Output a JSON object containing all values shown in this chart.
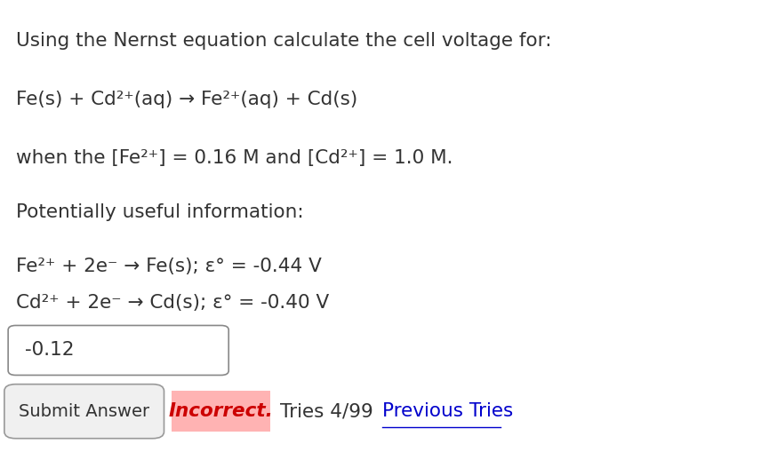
{
  "background_color": "#ffffff",
  "title_line": "Using the Nernst equation calculate the cell voltage for:",
  "reaction_line": "Fe(s) + Cd²⁺(aq) → Fe²⁺(aq) + Cd(s)",
  "condition_line": "when the [Fe²⁺] = 0.16 M and [Cd²⁺] = 1.0 M.",
  "info_header": "Potentially useful information:",
  "eq1_line": "Fe²⁺ + 2e⁻ → Fe(s); ε° = -0.44 V",
  "eq2_line": "Cd²⁺ + 2e⁻ → Cd(s); ε° = -0.40 V",
  "answer_value": "-0.12",
  "submit_button_text": "Submit Answer",
  "incorrect_text": "Incorrect.",
  "tries_text": "Tries 4/99",
  "prev_tries_text": "Previous Tries",
  "font_size_body": 15.5,
  "text_color": "#333333",
  "incorrect_bg": "#ffb3b3",
  "incorrect_color": "#cc0000",
  "link_color": "#0000cc",
  "button_color": "#f0f0f0",
  "input_box_color": "#ffffff",
  "input_box_border": "#888888"
}
